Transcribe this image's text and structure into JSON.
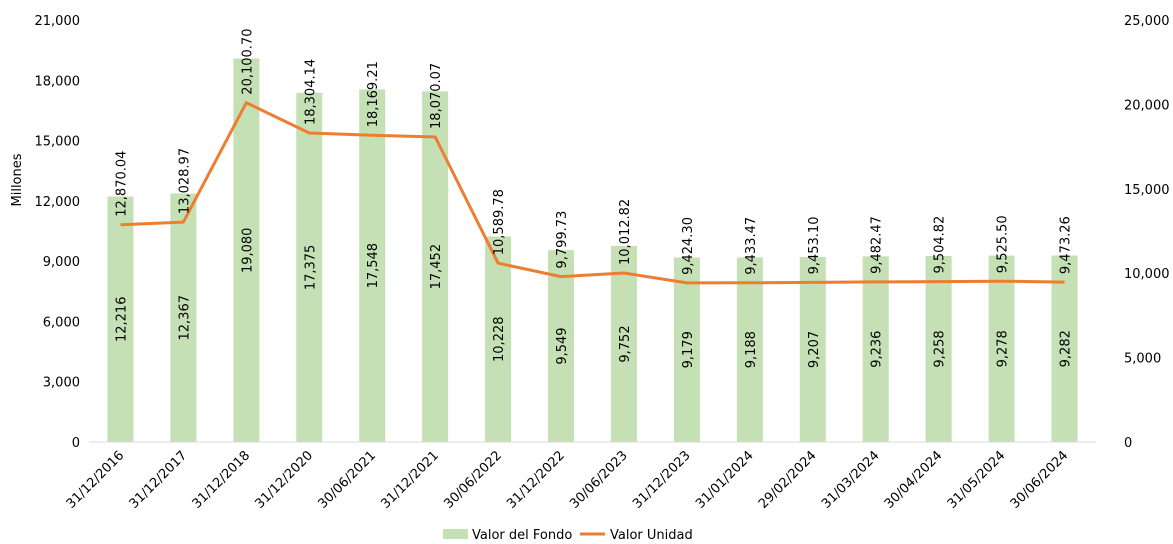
{
  "chart_data": {
    "type": "bar",
    "categories": [
      "31/12/2016",
      "31/12/2017",
      "31/12/2018",
      "31/12/2020",
      "30/06/2021",
      "31/12/2021",
      "30/06/2022",
      "31/12/2022",
      "30/06/2023",
      "31/12/2023",
      "31/01/2024",
      "29/02/2024",
      "31/03/2024",
      "30/04/2024",
      "31/05/2024",
      "30/06/2024"
    ],
    "series": [
      {
        "name": "Valor del Fondo",
        "type": "bar",
        "axis": "left",
        "color": "#c5e0b4",
        "values": [
          12216,
          12367,
          19080,
          17375,
          17548,
          17452,
          10228,
          9549,
          9752,
          9179,
          9188,
          9207,
          9236,
          9258,
          9278,
          9282
        ],
        "labels": [
          "12,216",
          "12,367",
          "19,080",
          "17,375",
          "17,548",
          "17,452",
          "10,228",
          "9,549",
          "9,752",
          "9,179",
          "9,188",
          "9,207",
          "9,236",
          "9,258",
          "9,278",
          "9,282"
        ]
      },
      {
        "name": "Valor Unidad",
        "type": "line",
        "axis": "right",
        "color": "#ed7d31",
        "values": [
          12870.04,
          13028.97,
          20100.7,
          18304.14,
          18169.21,
          18070.07,
          10589.78,
          9799.73,
          10012.82,
          9424.3,
          9433.47,
          9453.1,
          9482.47,
          9504.82,
          9525.5,
          9473.26
        ],
        "labels": [
          "12,870.04",
          "13,028.97",
          "20,100.70",
          "18,304.14",
          "18,169.21",
          "18,070.07",
          "10,589.78",
          "9,799.73",
          "10,012.82",
          "9,424.30",
          "9,433.47",
          "9,453.10",
          "9,482.47",
          "9,504.82",
          "9,525.50",
          "9,473.26"
        ]
      }
    ],
    "ylabel": "Millones",
    "ylim_left": [
      0,
      21000
    ],
    "yticks_left": [
      "0",
      "3,000",
      "6,000",
      "9,000",
      "12,000",
      "15,000",
      "18,000",
      "21,000"
    ],
    "ylim_right": [
      0,
      25000
    ],
    "yticks_right": [
      "0",
      "5,000",
      "10,000",
      "15,000",
      "20,000",
      "25,000"
    ],
    "legend": {
      "position": "bottom",
      "items": [
        "Valor del Fondo",
        "Valor Unidad"
      ]
    }
  }
}
